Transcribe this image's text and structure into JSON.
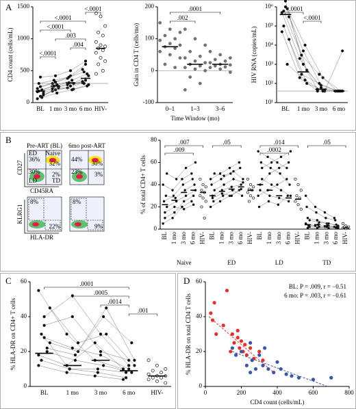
{
  "panel_labels": [
    "A",
    "B",
    "C",
    "D"
  ],
  "flow": {
    "titles": [
      "Pre-ART (BL)",
      "6mo post-ART"
    ],
    "top_axes": [
      "CD27",
      "CD45RA"
    ],
    "bottom_axes": [
      "KLRG1",
      "HLA-DR"
    ],
    "quadrant_names": [
      "ED",
      "Naive",
      "LD",
      "TD"
    ],
    "top_pct": [
      [
        "36%",
        "32%",
        "30%",
        "2%"
      ],
      [
        "44%",
        "30%",
        "23%",
        "3%"
      ]
    ],
    "bottom_pct": [
      [
        "8%",
        "22%"
      ],
      [
        "8%",
        "9%"
      ]
    ]
  },
  "chart_data": [
    {
      "type": "dot",
      "ylabel": "CD4 count (cells/mL)",
      "categories": [
        "BL",
        "1 mo",
        "3 mo",
        "6 mo",
        "HIV-"
      ],
      "ylim": [
        0,
        1500
      ],
      "yticks": [
        0,
        500,
        1000,
        1500
      ],
      "refline": 300,
      "paired": [
        [
          60,
          180,
          230,
          310
        ],
        [
          100,
          200,
          260,
          350
        ],
        [
          150,
          250,
          300,
          420
        ],
        [
          180,
          260,
          310,
          300
        ],
        [
          200,
          280,
          350,
          450
        ],
        [
          220,
          300,
          380,
          520
        ],
        [
          250,
          320,
          420,
          600
        ],
        [
          120,
          230,
          210,
          280
        ],
        [
          300,
          350,
          400,
          480
        ],
        [
          80,
          150,
          200,
          260
        ],
        [
          170,
          220,
          280,
          330
        ],
        [
          400,
          420,
          500,
          650
        ]
      ],
      "unpaired": [
        1400,
        1350,
        1200,
        1100,
        1050,
        950,
        900,
        880,
        850,
        820,
        780,
        700,
        650,
        600,
        500,
        450
      ],
      "medians": [
        180,
        260,
        310,
        380,
        850
      ],
      "brackets": [
        {
          "label": "<.0001",
          "span": [
            "6 mo",
            "HIV-"
          ]
        },
        {
          "label": "<.0001",
          "span": [
            "BL",
            "6 mo"
          ]
        },
        {
          "label": "<.0001",
          "span": [
            "BL",
            "3 mo"
          ]
        },
        {
          "label": ".003",
          "span": [
            "1 mo",
            "6 mo"
          ]
        },
        {
          "label": ".004",
          "span": [
            "3 mo",
            "6 mo"
          ]
        },
        {
          "label": "<.0001",
          "span": [
            "BL",
            "1 mo"
          ]
        }
      ]
    },
    {
      "type": "dot",
      "ylabel": "Gain in CD4 T (cells/mo)",
      "xlabel": "Time Window (mo)",
      "categories": [
        "0–1",
        "1–3",
        "3–6"
      ],
      "ylim": [
        -100,
        200
      ],
      "yticks": [
        -100,
        0,
        100,
        200
      ],
      "refline": 0,
      "color": "#777777",
      "columns": [
        [
          150,
          130,
          120,
          110,
          100,
          95,
          85,
          80,
          75,
          70,
          60,
          50,
          40,
          20,
          10
        ],
        [
          130,
          100,
          80,
          60,
          45,
          40,
          30,
          25,
          20,
          15,
          10,
          5,
          0,
          -20,
          -40,
          -60
        ],
        [
          60,
          50,
          40,
          35,
          30,
          25,
          20,
          18,
          15,
          12,
          10,
          5,
          -5
        ]
      ],
      "medians": [
        75,
        20,
        20
      ],
      "brackets": [
        {
          "label": ".0001",
          "span": [
            "0–1",
            "3–6"
          ]
        },
        {
          "label": ".002",
          "span": [
            "0–1",
            "1–3"
          ]
        }
      ]
    },
    {
      "type": "dot",
      "ylabel": "HIV RNA (copies/mL)",
      "categories": [
        "BL",
        "1 mo",
        "3 mo",
        "6 mo"
      ],
      "log_y": true,
      "ylim": [
        10,
        1000000
      ],
      "yticks": [
        {
          "value": 10,
          "label": "10¹"
        },
        {
          "value": 100,
          "label": "10²"
        },
        {
          "value": 1000,
          "label": "10³"
        },
        {
          "value": 10000,
          "label": "10⁴"
        },
        {
          "value": 100000,
          "label": "10⁵"
        },
        {
          "value": 1000000,
          "label": "10⁶"
        }
      ],
      "refline": 40,
      "paired": [
        [
          500000,
          2000,
          50,
          40
        ],
        [
          1000000,
          5000,
          80,
          40
        ],
        [
          300000,
          500,
          40,
          40
        ],
        [
          100000,
          300,
          100,
          40
        ],
        [
          800000,
          10000,
          200,
          40
        ],
        [
          50000,
          200,
          40,
          40
        ],
        [
          2000000,
          1000,
          60,
          40
        ],
        [
          20000,
          100,
          40,
          5000
        ],
        [
          600000,
          3000,
          300,
          40
        ],
        [
          1000,
          150,
          40,
          40
        ]
      ],
      "medians": [
        400000,
        400,
        50,
        40
      ],
      "brackets": [
        {
          "label": "<.0001",
          "span": [
            "BL",
            "1 mo"
          ]
        },
        {
          "label": "<.0001",
          "span": [
            "1 mo",
            "3 mo"
          ]
        }
      ]
    },
    {
      "type": "dot",
      "ylabel": "% of total CD4+ T cells",
      "categories": [
        "BL",
        "1 mo",
        "3 mo",
        "6 mo",
        "HIV-"
      ],
      "ylim": [
        0,
        80
      ],
      "yticks": [
        0,
        20,
        40,
        60,
        80
      ],
      "groups": [
        {
          "name": "Naive",
          "paired": [
            [
              5,
              10,
              20,
              25
            ],
            [
              10,
              15,
              25,
              30
            ],
            [
              20,
              25,
              30,
              35
            ],
            [
              25,
              30,
              40,
              45
            ],
            [
              30,
              28,
              35,
              40
            ],
            [
              40,
              35,
              45,
              50
            ],
            [
              15,
              20,
              18,
              22
            ],
            [
              50,
              45,
              55,
              60
            ]
          ],
          "unpaired": [
            45,
            40,
            38,
            35,
            33,
            30,
            28,
            25,
            20,
            10
          ],
          "medians": [
            22,
            26,
            33,
            35,
            33
          ],
          "brackets": [
            {
              "label": ".007",
              "span": [
                "BL",
                "HIV-"
              ]
            },
            {
              "label": ".009",
              "span": [
                "BL",
                "6 mo"
              ]
            }
          ]
        },
        {
          "name": "ED",
          "paired": [
            [
              20,
              25,
              30,
              35
            ],
            [
              30,
              35,
              38,
              40
            ],
            [
              35,
              40,
              45,
              42
            ],
            [
              40,
              45,
              50,
              55
            ],
            [
              25,
              30,
              35,
              30
            ],
            [
              45,
              50,
              55,
              60
            ],
            [
              28,
              32,
              30,
              36
            ],
            [
              50,
              48,
              52,
              45
            ]
          ],
          "unpaired": [
            45,
            40,
            38,
            36,
            35,
            33,
            30,
            28,
            25
          ],
          "medians": [
            30,
            34,
            36,
            38,
            35
          ],
          "brackets": [
            {
              "label": ".05",
              "span": [
                "BL",
                "6 mo"
              ]
            }
          ]
        },
        {
          "name": "LD",
          "paired": [
            [
              30,
              35,
              40,
              45
            ],
            [
              40,
              50,
              55,
              60
            ],
            [
              55,
              60,
              65,
              70
            ],
            [
              20,
              25,
              22,
              30
            ],
            [
              60,
              55,
              50,
              40
            ],
            [
              70,
              65,
              60,
              55
            ],
            [
              35,
              30,
              28,
              25
            ],
            [
              45,
              40,
              35,
              30
            ]
          ],
          "unpaired": [
            45,
            40,
            35,
            30,
            28,
            25,
            22,
            18
          ],
          "medians": [
            40,
            35,
            30,
            28,
            27
          ],
          "brackets": [
            {
              "label": ".014",
              "span": [
                "BL",
                "HIV-"
              ]
            },
            {
              "label": ".0002",
              "span": [
                "BL",
                "6 mo"
              ]
            }
          ]
        },
        {
          "name": "TD",
          "paired": [
            [
              5,
              3,
              2,
              2
            ],
            [
              10,
              8,
              5,
              4
            ],
            [
              2,
              2,
              1,
              1
            ],
            [
              20,
              15,
              10,
              8
            ],
            [
              3,
              4,
              3,
              2
            ],
            [
              30,
              20,
              15,
              10
            ],
            [
              1,
              1,
              2,
              1
            ],
            [
              8,
              6,
              5,
              3
            ]
          ],
          "unpaired": [
            5,
            3,
            2,
            2,
            1,
            1,
            0.5
          ],
          "medians": [
            4,
            4,
            3,
            2,
            1
          ],
          "brackets": [
            {
              "label": ".05",
              "span": [
                "BL",
                "HIV-"
              ]
            }
          ]
        }
      ]
    },
    {
      "type": "dot",
      "ylabel": "% HLA-DR on CD4+ T cells",
      "categories": [
        "BL",
        "1 mo",
        "3 mo",
        "6 mo",
        "HIV-"
      ],
      "ylim": [
        0,
        60
      ],
      "yticks": [
        0,
        20,
        40,
        60
      ],
      "paired": [
        [
          55,
          30,
          15,
          10
        ],
        [
          40,
          52,
          30,
          12
        ],
        [
          25,
          20,
          45,
          15
        ],
        [
          30,
          10,
          10,
          8
        ],
        [
          20,
          15,
          12,
          8
        ],
        [
          18,
          12,
          25,
          10
        ],
        [
          35,
          40,
          20,
          15
        ],
        [
          45,
          25,
          30,
          12
        ],
        [
          15,
          10,
          8,
          5
        ],
        [
          22,
          18,
          40,
          25
        ],
        [
          12,
          8,
          6,
          4
        ],
        [
          28,
          22,
          18,
          10
        ]
      ],
      "unpaired": [
        15,
        12,
        10,
        9,
        8,
        7,
        6,
        6,
        5,
        5,
        4,
        3,
        2
      ],
      "medians": [
        19,
        12,
        15,
        9,
        6
      ],
      "brackets": [
        {
          "label": ".0001",
          "span": [
            "BL",
            "6 mo"
          ]
        },
        {
          "label": ".0005",
          "span": [
            "1 mo",
            "6 mo"
          ]
        },
        {
          "label": ".0014",
          "span": [
            "3 mo",
            "6 mo"
          ]
        },
        {
          "label": ".001",
          "span": [
            "6 mo",
            "HIV-"
          ]
        }
      ]
    },
    {
      "type": "scatter",
      "ylabel": "% HLA-DR on total CD4 T cells",
      "xlabel": "CD4 count (cells/mL)",
      "xlim": [
        0,
        800
      ],
      "xticks": [
        0,
        200,
        400,
        600,
        800
      ],
      "ylim": [
        0,
        60
      ],
      "yticks": [
        0,
        20,
        40,
        60
      ],
      "series": [
        {
          "name": "BL: P = .009, r = −0.51",
          "color": "#e0312b",
          "x": [
            30,
            40,
            50,
            60,
            120,
            100,
            150,
            160,
            180,
            190,
            200,
            210,
            220,
            230,
            250,
            270,
            300,
            320,
            180,
            140
          ],
          "y": [
            42,
            38,
            48,
            30,
            55,
            35,
            30,
            25,
            28,
            22,
            26,
            20,
            24,
            18,
            22,
            16,
            20,
            15,
            32,
            20
          ],
          "fit": {
            "x": [
              20,
              380
            ],
            "y": [
              40,
              8
            ]
          }
        },
        {
          "name": "6 mo: P = .003, r = −0.61",
          "color": "#3a57a6",
          "x": [
            150,
            170,
            200,
            230,
            250,
            260,
            280,
            300,
            320,
            350,
            380,
            400,
            420,
            450,
            480,
            520,
            600,
            700,
            250,
            330
          ],
          "y": [
            22,
            18,
            20,
            12,
            25,
            15,
            10,
            18,
            12,
            10,
            8,
            14,
            10,
            7,
            6,
            5,
            4,
            5,
            8,
            22
          ],
          "fit": {
            "x": [
              150,
              680
            ],
            "y": [
              20,
              0
            ]
          }
        }
      ]
    }
  ]
}
